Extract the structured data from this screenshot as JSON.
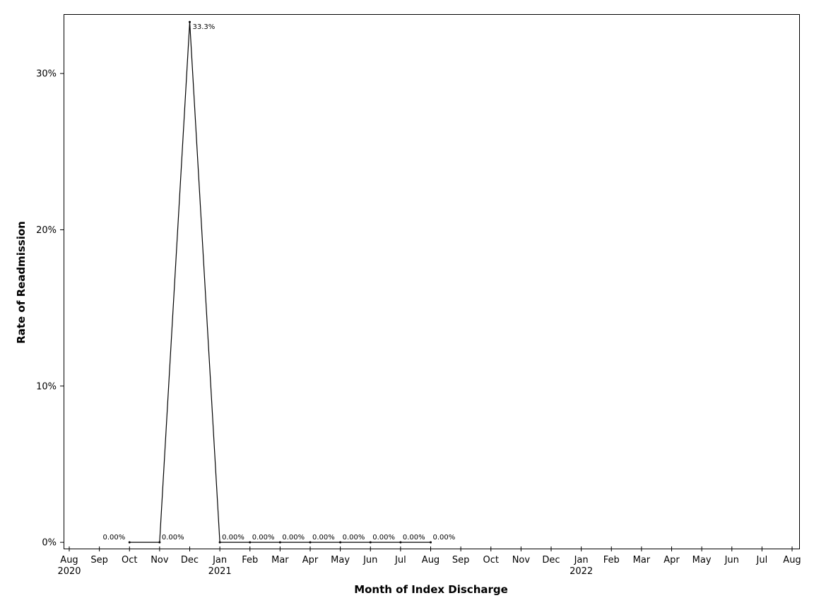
{
  "chart_data": {
    "type": "line",
    "xlabel": "Month of Index Discharge",
    "ylabel": "Rate of Readmission",
    "x_ticks": [
      {
        "month": "Aug",
        "year": "2020"
      },
      {
        "month": "Sep",
        "year": ""
      },
      {
        "month": "Oct",
        "year": ""
      },
      {
        "month": "Nov",
        "year": ""
      },
      {
        "month": "Dec",
        "year": ""
      },
      {
        "month": "Jan",
        "year": "2021"
      },
      {
        "month": "Feb",
        "year": ""
      },
      {
        "month": "Mar",
        "year": ""
      },
      {
        "month": "Apr",
        "year": ""
      },
      {
        "month": "May",
        "year": ""
      },
      {
        "month": "Jun",
        "year": ""
      },
      {
        "month": "Jul",
        "year": ""
      },
      {
        "month": "Aug",
        "year": ""
      },
      {
        "month": "Sep",
        "year": ""
      },
      {
        "month": "Oct",
        "year": ""
      },
      {
        "month": "Nov",
        "year": ""
      },
      {
        "month": "Dec",
        "year": ""
      },
      {
        "month": "Jan",
        "year": "2022"
      },
      {
        "month": "Feb",
        "year": ""
      },
      {
        "month": "Mar",
        "year": ""
      },
      {
        "month": "Apr",
        "year": ""
      },
      {
        "month": "May",
        "year": ""
      },
      {
        "month": "Jun",
        "year": ""
      },
      {
        "month": "Jul",
        "year": ""
      },
      {
        "month": "Aug",
        "year": ""
      }
    ],
    "y_ticks": [
      {
        "value": 0,
        "label": "0%"
      },
      {
        "value": 10,
        "label": "10%"
      },
      {
        "value": 20,
        "label": "20%"
      },
      {
        "value": 30,
        "label": "30%"
      }
    ],
    "ylim": [
      -0.4,
      33.8
    ],
    "points": [
      {
        "month": "2020-10",
        "value": 0,
        "label": "0.00%"
      },
      {
        "month": "2020-11",
        "value": 0,
        "label": "0.00%"
      },
      {
        "month": "2020-12",
        "value": 33.3,
        "label": "33.3%"
      },
      {
        "month": "2021-01",
        "value": 0,
        "label": "0.00%"
      },
      {
        "month": "2021-02",
        "value": 0,
        "label": "0.00%"
      },
      {
        "month": "2021-03",
        "value": 0,
        "label": "0.00%"
      },
      {
        "month": "2021-04",
        "value": 0,
        "label": "0.00%"
      },
      {
        "month": "2021-05",
        "value": 0,
        "label": "0.00%"
      },
      {
        "month": "2021-06",
        "value": 0,
        "label": "0.00%"
      },
      {
        "month": "2021-07",
        "value": 0,
        "label": "0.00%"
      },
      {
        "month": "2021-08",
        "value": 0,
        "label": "0.00%"
      }
    ],
    "grid": false,
    "legend": "none",
    "line_color": "#000000"
  }
}
